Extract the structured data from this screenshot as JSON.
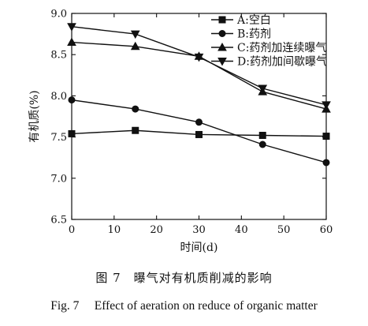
{
  "chart_data": {
    "type": "line",
    "x": [
      0,
      15,
      30,
      45,
      60
    ],
    "xlabel": "时间(d)",
    "ylabel": "有机质(%)",
    "xlim": [
      0,
      60
    ],
    "ylim": [
      6.5,
      9.0
    ],
    "xticks": [
      0,
      10,
      20,
      30,
      40,
      50,
      60
    ],
    "yticks": [
      6.5,
      7.0,
      7.5,
      8.0,
      8.5,
      9.0
    ],
    "xtick_labels": [
      "0",
      "10",
      "20",
      "30",
      "40",
      "50",
      "60"
    ],
    "ytick_labels": [
      "6.5",
      "7.0",
      "7.5",
      "8.0",
      "8.5",
      "9.0"
    ],
    "grid": false,
    "legend_position": "top-right",
    "series": [
      {
        "name": "A:空白",
        "marker": "square",
        "values": [
          7.54,
          7.58,
          7.53,
          7.52,
          7.51
        ]
      },
      {
        "name": "B:药剂",
        "marker": "circle",
        "values": [
          7.95,
          7.84,
          7.68,
          7.41,
          7.19
        ]
      },
      {
        "name": "C:药剂加连续曝气",
        "marker": "triangle-up",
        "values": [
          8.65,
          8.6,
          8.48,
          8.05,
          7.84
        ]
      },
      {
        "name": "D:药剂加间歇曝气",
        "marker": "triangle-down",
        "values": [
          8.84,
          8.75,
          8.47,
          8.09,
          7.89
        ]
      }
    ]
  },
  "captions": {
    "chinese": "图 7　曝气对有机质削减的影响",
    "english": "Fig. 7　 Effect of aeration on reduce of organic matter"
  }
}
